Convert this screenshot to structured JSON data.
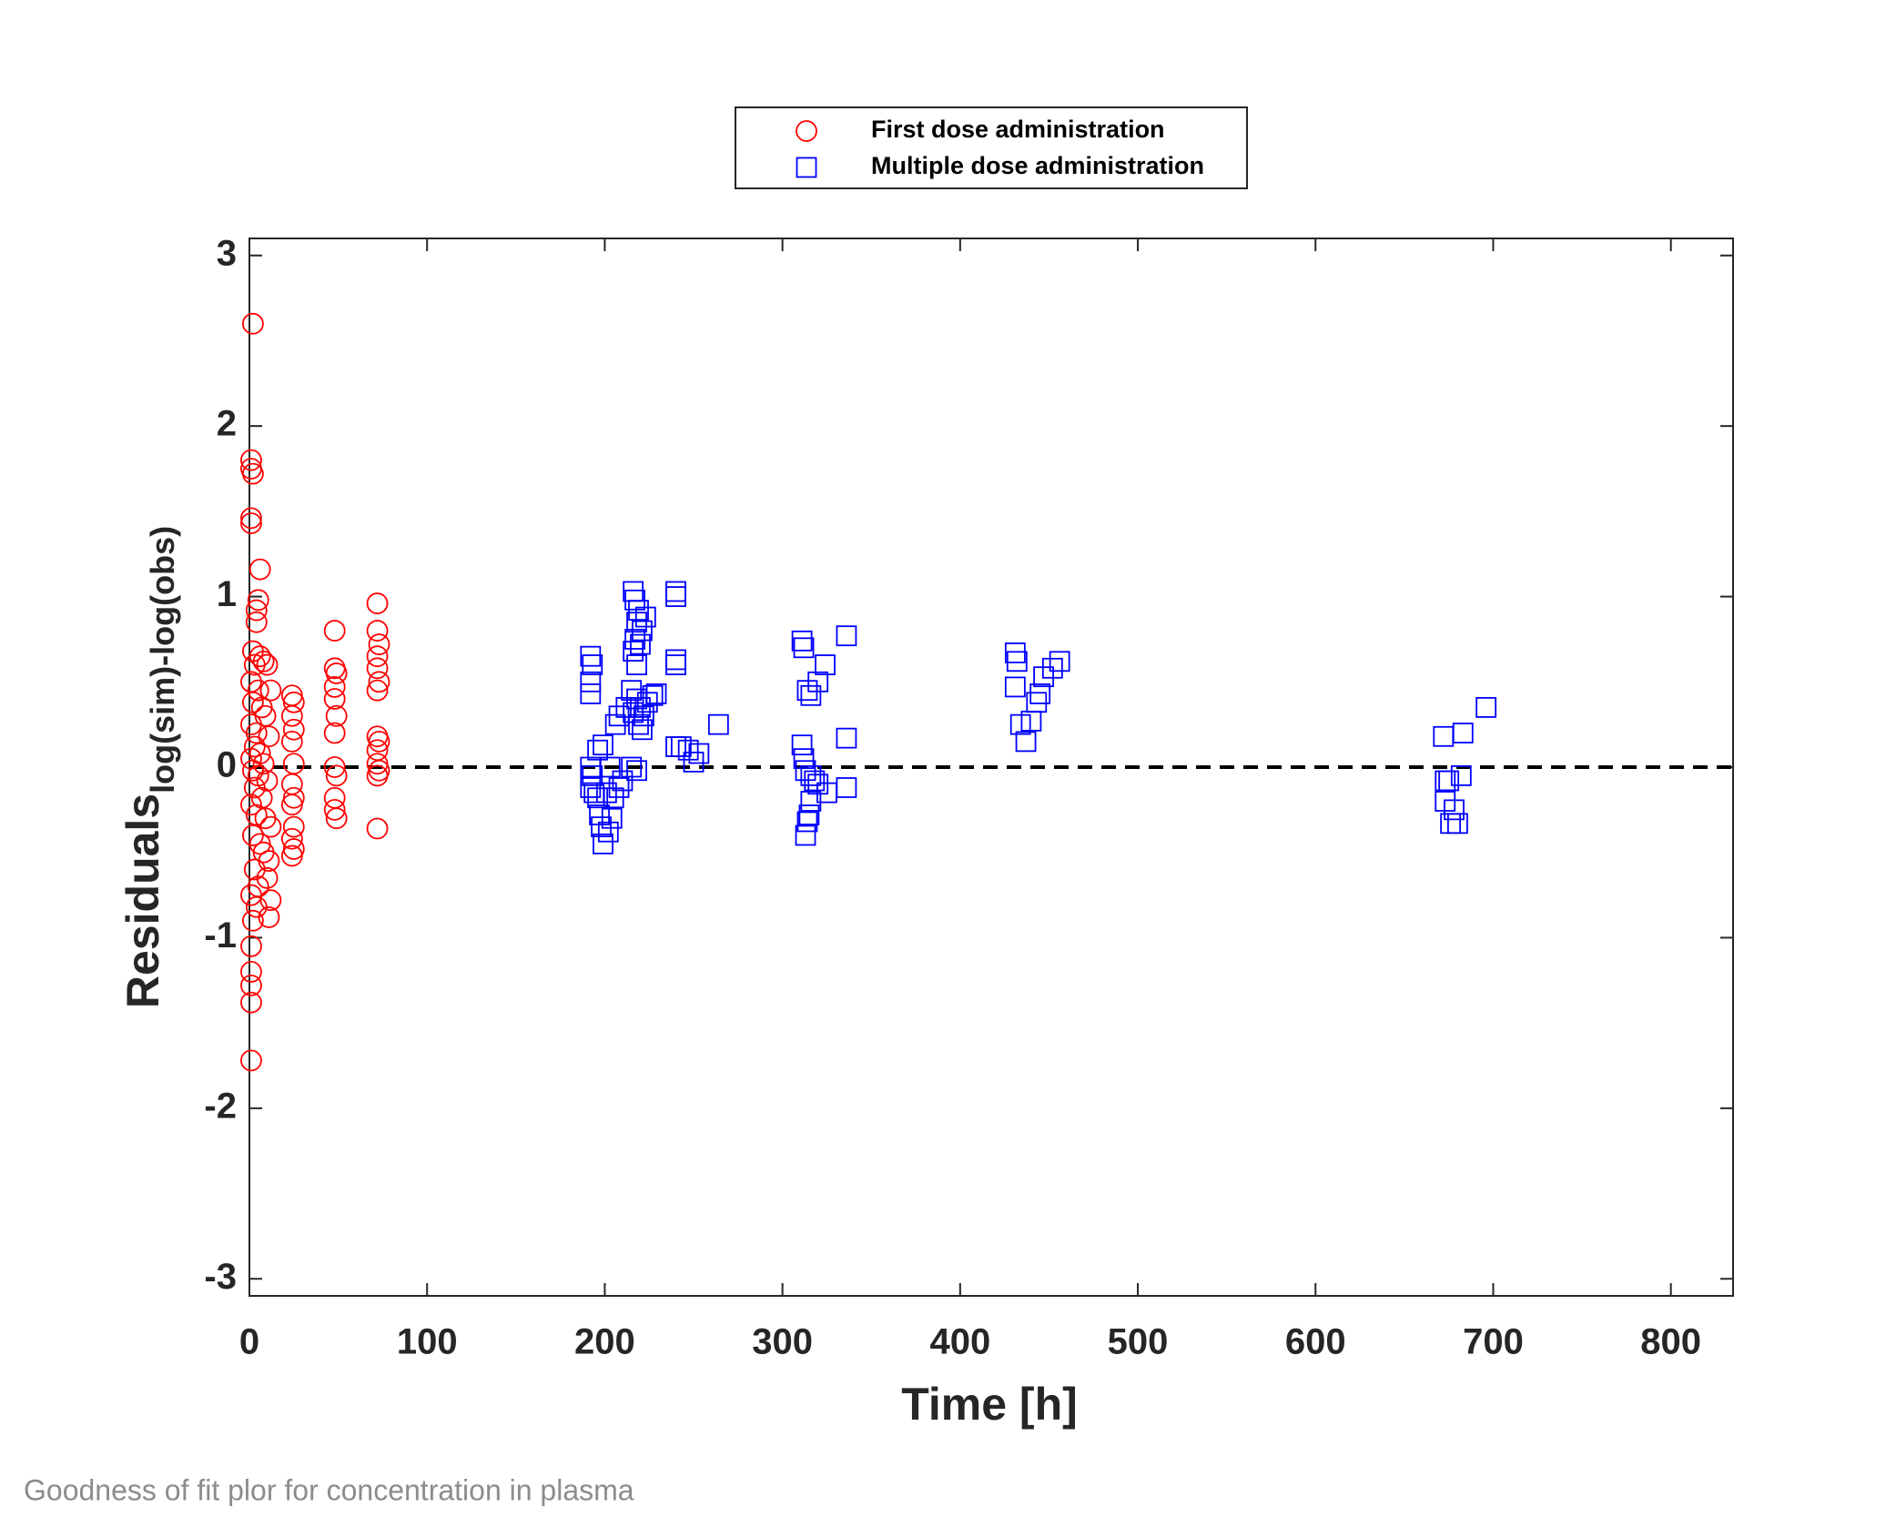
{
  "chart_data": {
    "type": "scatter",
    "xlabel": "Time [h]",
    "ylabel": "Residuals",
    "ylabel_sub": "log(sim)-log(obs)",
    "caption": "Goodness of fit plor for concentration in plasma",
    "xlim": [
      0,
      835
    ],
    "ylim": [
      -3.1,
      3.1
    ],
    "xticks": [
      0,
      100,
      200,
      300,
      400,
      500,
      600,
      700,
      800
    ],
    "yticks": [
      -3,
      -2,
      -1,
      0,
      1,
      2,
      3
    ],
    "hline": 0,
    "legend": "top",
    "series": [
      {
        "name": "First dose administration",
        "color": "#ff0000",
        "marker": "circle",
        "x": [
          2,
          1,
          1,
          2,
          1,
          1,
          6,
          5,
          4,
          4,
          2,
          6,
          3,
          8,
          10,
          1,
          5,
          12,
          2,
          7,
          9,
          1,
          4,
          11,
          3,
          6,
          1,
          8,
          2,
          5,
          10,
          3,
          7,
          1,
          4,
          9,
          12,
          2,
          6,
          8,
          11,
          3,
          10,
          5,
          1,
          12,
          4,
          11,
          2,
          1,
          1,
          1,
          1,
          1,
          24,
          25,
          24,
          25,
          24,
          25,
          24,
          25,
          24,
          25,
          24,
          25,
          24,
          48,
          48,
          49,
          48,
          48,
          49,
          48,
          48,
          49,
          48,
          48,
          49,
          72,
          72,
          73,
          72,
          72,
          73,
          72,
          72,
          73,
          72,
          72,
          73,
          72,
          72
        ],
        "values": [
          2.6,
          1.8,
          1.75,
          1.72,
          1.46,
          1.43,
          1.16,
          0.98,
          0.92,
          0.85,
          0.68,
          0.65,
          0.6,
          0.62,
          0.6,
          0.5,
          0.45,
          0.45,
          0.38,
          0.35,
          0.3,
          0.25,
          0.2,
          0.18,
          0.12,
          0.08,
          0.05,
          0.02,
          -0.02,
          -0.05,
          -0.08,
          -0.12,
          -0.18,
          -0.22,
          -0.28,
          -0.3,
          -0.35,
          -0.4,
          -0.45,
          -0.5,
          -0.55,
          -0.6,
          -0.65,
          -0.7,
          -0.75,
          -0.78,
          -0.82,
          -0.88,
          -0.9,
          -1.05,
          -1.2,
          -1.28,
          -1.38,
          -1.72,
          0.42,
          0.38,
          0.3,
          0.22,
          0.15,
          0.02,
          -0.1,
          -0.18,
          -0.22,
          -0.35,
          -0.42,
          -0.48,
          -0.52,
          0.8,
          0.58,
          0.55,
          0.47,
          0.4,
          0.3,
          0.2,
          0.0,
          -0.05,
          -0.18,
          -0.25,
          -0.3,
          0.96,
          0.8,
          0.72,
          0.65,
          0.58,
          0.5,
          0.45,
          0.18,
          0.15,
          0.1,
          0.02,
          -0.02,
          -0.05,
          -0.36
        ]
      },
      {
        "name": "Multiple dose administration",
        "color": "#0000ff",
        "marker": "square",
        "x": [
          192,
          193,
          192,
          192,
          196,
          199,
          192,
          193,
          192,
          194,
          196,
          197,
          198,
          199,
          202,
          204,
          201,
          203,
          205,
          208,
          210,
          206,
          208,
          212,
          216,
          217,
          219,
          218,
          223,
          221,
          217,
          220,
          216,
          218,
          215,
          218,
          220,
          222,
          219,
          221,
          224,
          227,
          229,
          215,
          218,
          216,
          240,
          240,
          240,
          240,
          240,
          243,
          247,
          250,
          253,
          264,
          311,
          312,
          324,
          320,
          314,
          316,
          311,
          312,
          313,
          316,
          318,
          320,
          325,
          316,
          315,
          314,
          313,
          336,
          336,
          336,
          431,
          432,
          431,
          434,
          440,
          437,
          443,
          445,
          447,
          452,
          456,
          672,
          673,
          675,
          673,
          678,
          676,
          680,
          682,
          683,
          696
        ],
        "values": [
          0.65,
          0.6,
          0.5,
          0.43,
          0.1,
          0.13,
          0.0,
          -0.05,
          -0.12,
          -0.15,
          -0.18,
          -0.28,
          -0.35,
          -0.45,
          -0.38,
          -0.3,
          -0.15,
          0.0,
          -0.18,
          -0.12,
          -0.08,
          0.25,
          0.3,
          0.35,
          1.03,
          0.98,
          0.92,
          0.85,
          0.88,
          0.8,
          0.75,
          0.72,
          0.68,
          0.6,
          0.45,
          0.4,
          0.35,
          0.3,
          0.25,
          0.22,
          0.38,
          0.42,
          0.43,
          0.0,
          -0.02,
          0.32,
          1.03,
          1.0,
          0.63,
          0.6,
          0.12,
          0.12,
          0.1,
          0.03,
          0.08,
          0.25,
          0.74,
          0.7,
          0.6,
          0.5,
          0.45,
          0.42,
          0.13,
          0.05,
          -0.02,
          -0.05,
          -0.08,
          -0.1,
          -0.15,
          -0.2,
          -0.28,
          -0.32,
          -0.4,
          0.77,
          0.17,
          -0.12,
          0.67,
          0.62,
          0.47,
          0.25,
          0.27,
          0.15,
          0.38,
          0.43,
          0.53,
          0.58,
          0.62,
          0.18,
          -0.08,
          -0.08,
          -0.2,
          -0.25,
          -0.33,
          -0.33,
          -0.05,
          0.2,
          0.35
        ]
      }
    ]
  }
}
